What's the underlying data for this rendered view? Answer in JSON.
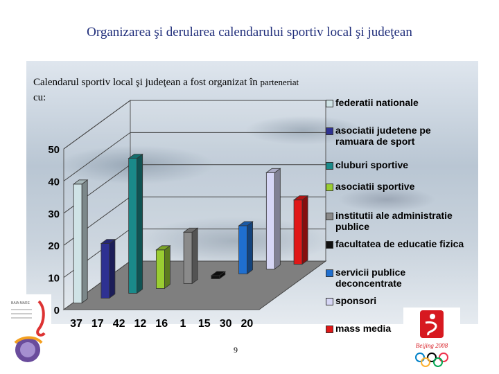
{
  "slide": {
    "title": "Organizarea şi derularea calendarului sportiv local şi judeţean",
    "subtitle_main": "Calendarul sportiv local şi judeţean a fost organizat în ",
    "subtitle_small": "parteneriat",
    "subtitle_line2": "cu:",
    "page_number": "9"
  },
  "chart_data": {
    "type": "bar",
    "title": "",
    "xlabel": "",
    "ylabel": "",
    "ylim": [
      0,
      50
    ],
    "yticks": [
      "0",
      "10",
      "20",
      "30",
      "40",
      "50"
    ],
    "grid": true,
    "legend_position": "right",
    "data_labels": [
      "37",
      "17",
      "42",
      "12",
      "16",
      "1",
      "15",
      "30",
      "20"
    ],
    "series": [
      {
        "name": "federatii nationale",
        "value": 37,
        "color": "#cfe3e6"
      },
      {
        "name": "asociatii judetene pe ramuara de sport",
        "value": 17,
        "color": "#2e3192"
      },
      {
        "name": "cluburi sportive",
        "value": 42,
        "color": "#1a8a8a"
      },
      {
        "name": "asociatii sportive",
        "value": 12,
        "color": "#9acd32"
      },
      {
        "name": "institutii ale administratie publice",
        "value": 16,
        "color": "#8a8a8a"
      },
      {
        "name": "facultatea de educatie fizica",
        "value": 1,
        "color": "#111111"
      },
      {
        "name": "servicii publice deconcentrate",
        "value": 15,
        "color": "#1f6fcf"
      },
      {
        "name": "sponsori",
        "value": 30,
        "color": "#d6d6f5"
      },
      {
        "name": "mass media",
        "value": 20,
        "color": "#e01818"
      }
    ]
  },
  "logos": {
    "left_text": "BAIA MARE",
    "right_text": "Beijing 2008"
  }
}
